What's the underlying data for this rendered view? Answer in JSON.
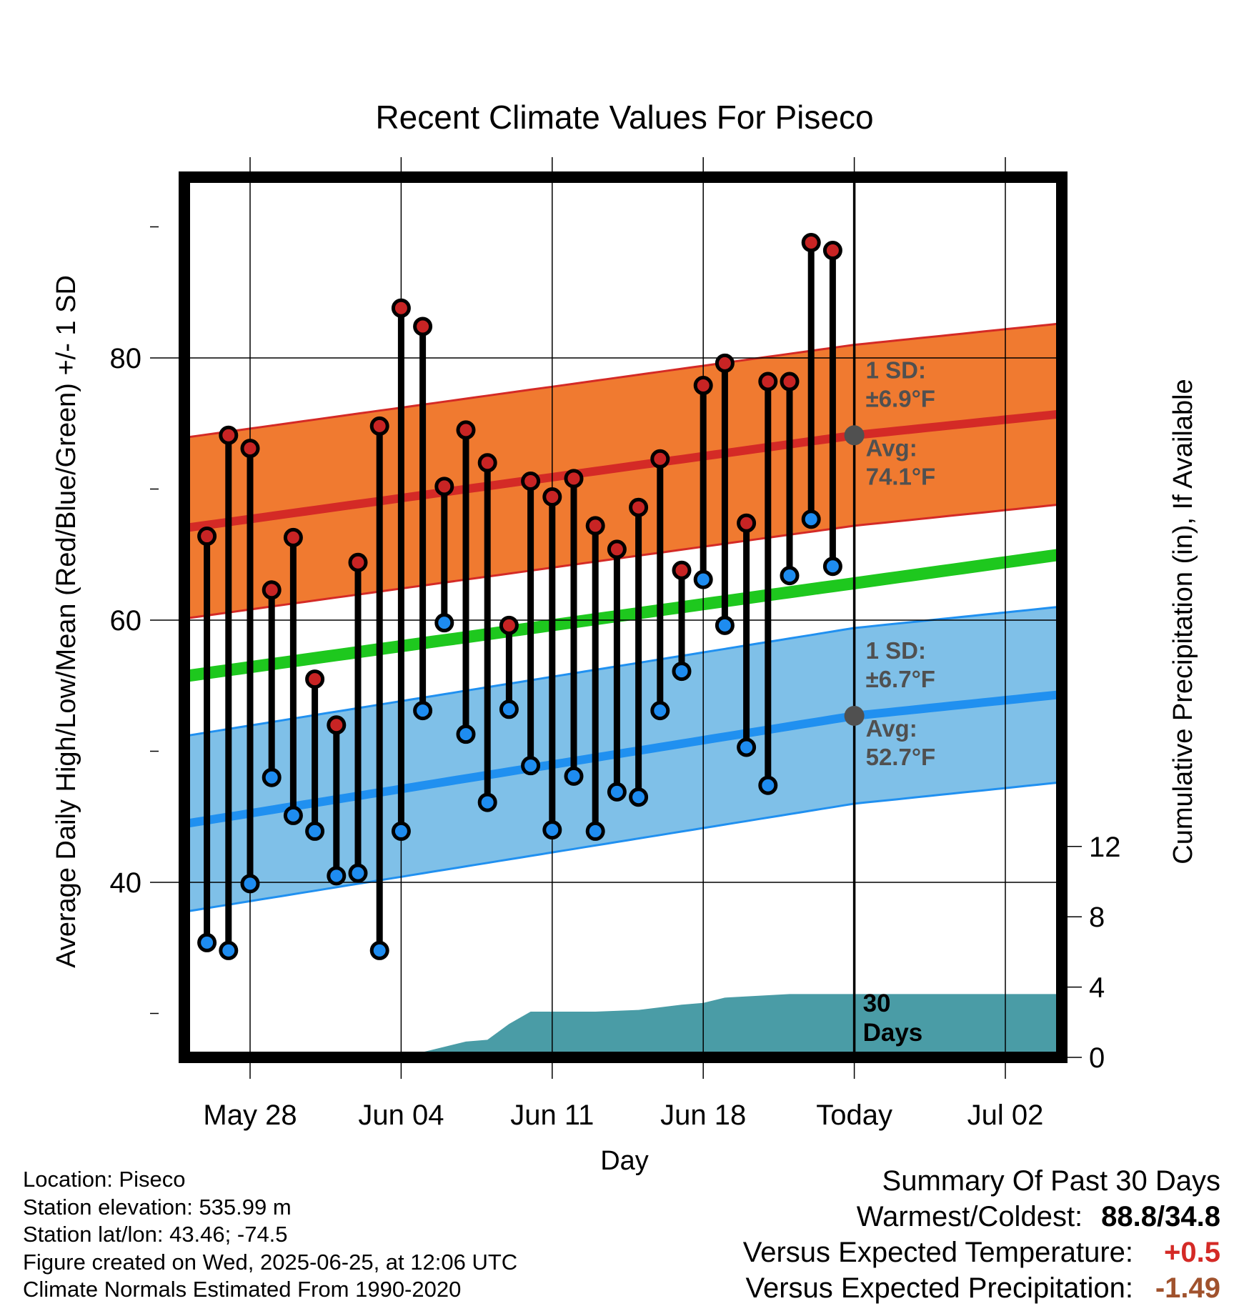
{
  "chart_data": {
    "type": "line",
    "title": "Recent Climate Values For Piseco",
    "xlabel": "Day",
    "ylabel": "Average Daily High/Low/Mean (Red/Blue/Green) +/- 1 SD",
    "y2label": "Cumulative Precipitation (in), If Available",
    "ylim": [
      26,
      93
    ],
    "y_ticks": [
      40,
      60,
      80
    ],
    "y2lim": [
      0,
      24
    ],
    "y2_ticks": [
      0,
      4,
      8,
      12
    ],
    "x_ticks": [
      "May 28",
      "Jun 04",
      "Jun 11",
      "Jun 18",
      "Today",
      "Jul 02"
    ],
    "x_tick_dates": [
      "2025-05-28",
      "2025-06-04",
      "2025-06-11",
      "2025-06-18",
      "2025-06-25",
      "2025-07-02"
    ],
    "x_range": [
      "2025-05-24",
      "2025-07-05"
    ],
    "today": "2025-06-25",
    "grid": true,
    "series": [
      {
        "name": "High",
        "dates": [
          "2025-05-26",
          "2025-05-27",
          "2025-05-28",
          "2025-05-29",
          "2025-05-30",
          "2025-05-31",
          "2025-06-01",
          "2025-06-02",
          "2025-06-03",
          "2025-06-04",
          "2025-06-05",
          "2025-06-06",
          "2025-06-07",
          "2025-06-08",
          "2025-06-09",
          "2025-06-10",
          "2025-06-11",
          "2025-06-12",
          "2025-06-13",
          "2025-06-14",
          "2025-06-15",
          "2025-06-16",
          "2025-06-17",
          "2025-06-18",
          "2025-06-19",
          "2025-06-20",
          "2025-06-21",
          "2025-06-22",
          "2025-06-23",
          "2025-06-24"
        ],
        "values": [
          66.4,
          74.1,
          73.1,
          62.3,
          66.3,
          55.5,
          52.0,
          64.4,
          74.8,
          83.8,
          82.4,
          70.2,
          74.5,
          72.0,
          59.6,
          70.6,
          69.4,
          70.8,
          67.2,
          65.4,
          68.6,
          72.3,
          63.8,
          77.9,
          79.6,
          67.4,
          78.2,
          78.2,
          88.8,
          88.2
        ]
      },
      {
        "name": "Low",
        "dates": [
          "2025-05-26",
          "2025-05-27",
          "2025-05-28",
          "2025-05-29",
          "2025-05-30",
          "2025-05-31",
          "2025-06-01",
          "2025-06-02",
          "2025-06-03",
          "2025-06-04",
          "2025-06-05",
          "2025-06-06",
          "2025-06-07",
          "2025-06-08",
          "2025-06-09",
          "2025-06-10",
          "2025-06-11",
          "2025-06-12",
          "2025-06-13",
          "2025-06-14",
          "2025-06-15",
          "2025-06-16",
          "2025-06-17",
          "2025-06-18",
          "2025-06-19",
          "2025-06-20",
          "2025-06-21",
          "2025-06-22",
          "2025-06-23",
          "2025-06-24"
        ],
        "values": [
          35.4,
          34.8,
          39.9,
          48.0,
          45.1,
          43.9,
          40.5,
          40.7,
          34.8,
          43.9,
          53.1,
          59.8,
          51.3,
          46.1,
          53.2,
          48.9,
          44.0,
          48.1,
          43.9,
          46.9,
          46.5,
          53.1,
          56.1,
          63.1,
          59.6,
          50.3,
          47.4,
          63.4,
          67.7,
          64.1
        ]
      }
    ],
    "normals": {
      "avg_high": {
        "start": 66.8,
        "today": 74.1,
        "end": 75.8,
        "sd": 6.9
      },
      "avg_low": {
        "start": 44.2,
        "today": 52.7,
        "end": 54.4,
        "sd": 6.7
      },
      "avg_mean": {
        "start": 55.5,
        "end": 65.1
      }
    },
    "precipitation": {
      "dates": [
        "2025-05-24",
        "2025-05-30",
        "2025-05-31",
        "2025-06-05",
        "2025-06-06",
        "2025-06-07",
        "2025-06-08",
        "2025-06-09",
        "2025-06-10",
        "2025-06-13",
        "2025-06-15",
        "2025-06-17",
        "2025-06-18",
        "2025-06-19",
        "2025-06-22",
        "2025-06-25",
        "2025-07-05"
      ],
      "values": [
        0,
        0,
        0.3,
        0.3,
        0.6,
        0.9,
        1.0,
        1.9,
        2.6,
        2.6,
        2.7,
        3.0,
        3.1,
        3.4,
        3.6,
        3.6,
        3.6
      ]
    },
    "annotations": {
      "high_sd_label": "1 SD:",
      "high_sd_value": "±6.9°F",
      "high_avg_label": "Avg:",
      "high_avg_value": "74.1°F",
      "low_sd_label": "1 SD:",
      "low_sd_value": "±6.7°F",
      "low_avg_label": "Avg:",
      "low_avg_value": "52.7°F",
      "days_num": "30",
      "days_label": "Days"
    }
  },
  "footer": {
    "location": "Location: Piseco",
    "elevation": "Station elevation: 535.99 m",
    "latlon": "Station lat/lon: 43.46; -74.5",
    "created": "Figure created on Wed, 2025-06-25, at 12:06 UTC",
    "normals": "Climate Normals Estimated From 1990-2020"
  },
  "summary": {
    "title": "Summary Of Past 30 Days",
    "warmest_label": "Warmest/Coldest:",
    "warmest_value": "88.8/34.8",
    "temp_label": "Versus Expected Temperature:",
    "temp_value": "+0.5",
    "precip_label": "Versus Expected Precipitation:",
    "precip_value": "-1.49"
  },
  "colors": {
    "high_band": "#f07a30",
    "high_line": "#d42a26",
    "low_band": "#7fc0e8",
    "low_line": "#2090f0",
    "mean_line": "#1ec81e",
    "precip": "#4a9ca6",
    "annotation": "#505050",
    "dot_high": "#c82424",
    "dot_low": "#1e8cf0",
    "temp_value": "#d42a26",
    "precip_value": "#a0522d"
  }
}
